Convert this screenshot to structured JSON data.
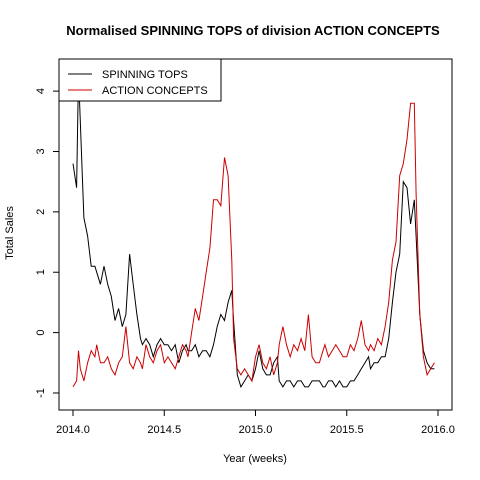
{
  "chart_data": {
    "type": "line",
    "title": "Normalised SPINNING TOPS of division ACTION CONCEPTS",
    "xlabel": "Year (weeks)",
    "ylabel": "Total Sales",
    "xlim": [
      2014.0,
      2016.0
    ],
    "ylim": [
      -1.05,
      4.3
    ],
    "x_ticks": [
      2014.0,
      2014.5,
      2015.0,
      2015.5,
      2016.0
    ],
    "x_tick_labels": [
      "2014.0",
      "2014.5",
      "2015.0",
      "2015.5",
      "2016.0"
    ],
    "y_ticks": [
      -1,
      0,
      1,
      2,
      3,
      4
    ],
    "y_tick_labels": [
      "-1",
      "0",
      "1",
      "2",
      "3",
      "4"
    ],
    "grid": false,
    "legend_position": "top-left",
    "series": [
      {
        "name": "SPINNING TOPS",
        "color": "#000000",
        "x": [
          2014.0,
          2014.02,
          2014.03,
          2014.04,
          2014.06,
          2014.08,
          2014.1,
          2014.12,
          2014.13,
          2014.15,
          2014.17,
          2014.19,
          2014.21,
          2014.23,
          2014.25,
          2014.27,
          2014.29,
          2014.31,
          2014.33,
          2014.35,
          2014.37,
          2014.38,
          2014.4,
          2014.42,
          2014.44,
          2014.46,
          2014.48,
          2014.5,
          2014.52,
          2014.54,
          2014.56,
          2014.58,
          2014.6,
          2014.62,
          2014.63,
          2014.65,
          2014.67,
          2014.69,
          2014.71,
          2014.73,
          2014.75,
          2014.77,
          2014.79,
          2014.81,
          2014.83,
          2014.85,
          2014.87,
          2014.88,
          2014.9,
          2014.92,
          2014.94,
          2014.96,
          2014.98,
          2015.0,
          2015.02,
          2015.04,
          2015.06,
          2015.08,
          2015.1,
          2015.12,
          2015.13,
          2015.15,
          2015.17,
          2015.19,
          2015.21,
          2015.23,
          2015.25,
          2015.27,
          2015.29,
          2015.31,
          2015.33,
          2015.35,
          2015.37,
          2015.38,
          2015.4,
          2015.42,
          2015.44,
          2015.46,
          2015.48,
          2015.5,
          2015.52,
          2015.54,
          2015.56,
          2015.58,
          2015.6,
          2015.62,
          2015.63,
          2015.65,
          2015.67,
          2015.69,
          2015.71,
          2015.73,
          2015.75,
          2015.77,
          2015.79,
          2015.81,
          2015.83,
          2015.85,
          2015.87,
          2015.88,
          2015.9,
          2015.92,
          2015.94,
          2015.96,
          2015.98
        ],
        "values": [
          2.8,
          2.4,
          4.3,
          3.5,
          1.9,
          1.6,
          1.1,
          1.1,
          1.0,
          0.8,
          1.1,
          0.8,
          0.6,
          0.2,
          0.4,
          0.1,
          0.3,
          1.3,
          0.8,
          0.3,
          -0.1,
          -0.2,
          -0.1,
          -0.2,
          -0.4,
          -0.2,
          -0.1,
          -0.2,
          -0.2,
          -0.3,
          -0.2,
          -0.5,
          -0.3,
          -0.2,
          -0.3,
          -0.3,
          -0.2,
          -0.4,
          -0.3,
          -0.3,
          -0.4,
          -0.2,
          0.1,
          0.3,
          0.2,
          0.5,
          0.7,
          0.2,
          -0.7,
          -0.9,
          -0.8,
          -0.7,
          -0.8,
          -0.6,
          -0.3,
          -0.6,
          -0.7,
          -0.7,
          -0.5,
          -0.4,
          -0.8,
          -0.9,
          -0.8,
          -0.8,
          -0.9,
          -0.8,
          -0.8,
          -0.9,
          -0.9,
          -0.8,
          -0.8,
          -0.8,
          -0.9,
          -0.9,
          -0.8,
          -0.8,
          -0.9,
          -0.8,
          -0.9,
          -0.9,
          -0.8,
          -0.8,
          -0.7,
          -0.6,
          -0.5,
          -0.4,
          -0.6,
          -0.5,
          -0.5,
          -0.4,
          -0.4,
          -0.1,
          0.5,
          1.0,
          1.3,
          2.5,
          2.4,
          1.8,
          2.2,
          1.6,
          0.3,
          -0.3,
          -0.5,
          -0.6,
          -0.6
        ],
        "_pad": 0
      },
      {
        "name": "ACTION CONCEPTS",
        "color": "#cc0000",
        "x": [
          2014.0,
          2014.02,
          2014.03,
          2014.04,
          2014.06,
          2014.08,
          2014.1,
          2014.12,
          2014.13,
          2014.15,
          2014.17,
          2014.19,
          2014.21,
          2014.23,
          2014.25,
          2014.27,
          2014.29,
          2014.31,
          2014.33,
          2014.35,
          2014.37,
          2014.38,
          2014.4,
          2014.42,
          2014.44,
          2014.46,
          2014.48,
          2014.5,
          2014.52,
          2014.54,
          2014.56,
          2014.58,
          2014.6,
          2014.62,
          2014.63,
          2014.65,
          2014.67,
          2014.69,
          2014.71,
          2014.73,
          2014.75,
          2014.77,
          2014.79,
          2014.81,
          2014.83,
          2014.85,
          2014.87,
          2014.88,
          2014.9,
          2014.92,
          2014.94,
          2014.96,
          2014.98,
          2015.0,
          2015.02,
          2015.04,
          2015.06,
          2015.08,
          2015.1,
          2015.12,
          2015.13,
          2015.15,
          2015.17,
          2015.19,
          2015.21,
          2015.23,
          2015.25,
          2015.27,
          2015.29,
          2015.31,
          2015.33,
          2015.35,
          2015.37,
          2015.38,
          2015.4,
          2015.42,
          2015.44,
          2015.46,
          2015.48,
          2015.5,
          2015.52,
          2015.54,
          2015.56,
          2015.58,
          2015.6,
          2015.62,
          2015.63,
          2015.65,
          2015.67,
          2015.69,
          2015.71,
          2015.73,
          2015.75,
          2015.77,
          2015.79,
          2015.81,
          2015.83,
          2015.85,
          2015.87,
          2015.88,
          2015.9,
          2015.92,
          2015.94,
          2015.96,
          2015.98
        ],
        "values": [
          -0.9,
          -0.8,
          -0.3,
          -0.6,
          -0.8,
          -0.5,
          -0.3,
          -0.4,
          -0.2,
          -0.5,
          -0.5,
          -0.4,
          -0.6,
          -0.7,
          -0.5,
          -0.4,
          0.1,
          -0.5,
          -0.6,
          -0.4,
          -0.5,
          -0.6,
          -0.2,
          -0.4,
          -0.5,
          -0.3,
          -0.2,
          -0.5,
          -0.4,
          -0.5,
          -0.6,
          -0.4,
          -0.2,
          -0.3,
          -0.4,
          0.0,
          0.4,
          0.2,
          0.6,
          1.0,
          1.4,
          2.2,
          2.2,
          2.1,
          2.9,
          2.6,
          1.2,
          -0.1,
          -0.6,
          -0.7,
          -0.6,
          -0.7,
          -0.8,
          -0.4,
          -0.2,
          -0.5,
          -0.6,
          -0.4,
          -0.7,
          -0.5,
          -0.2,
          0.1,
          -0.2,
          -0.4,
          -0.2,
          -0.3,
          -0.1,
          -0.3,
          0.3,
          -0.4,
          -0.5,
          -0.5,
          -0.3,
          -0.2,
          -0.4,
          -0.3,
          -0.2,
          -0.3,
          -0.4,
          -0.4,
          -0.2,
          -0.3,
          -0.1,
          0.2,
          -0.2,
          -0.3,
          -0.2,
          -0.3,
          -0.1,
          -0.2,
          0.1,
          0.5,
          1.2,
          1.5,
          2.6,
          2.8,
          3.2,
          3.8,
          3.8,
          2.3,
          0.3,
          -0.4,
          -0.7,
          -0.6,
          -0.5
        ],
        "_pad": 0
      }
    ]
  }
}
